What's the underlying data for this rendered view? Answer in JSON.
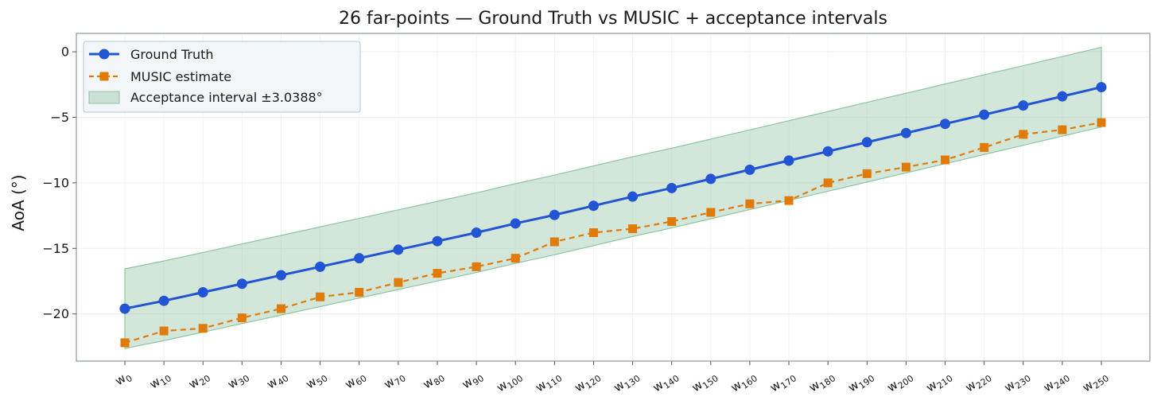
{
  "chart_data": {
    "type": "line",
    "title": "26 far-points — Ground Truth vs MUSIC + acceptance intervals",
    "xlabel": "",
    "ylabel": "AoA (°)",
    "ylim": [
      -23.6,
      1.4
    ],
    "yticks": [
      0,
      -5,
      -10,
      -15,
      -20
    ],
    "ytick_labels": [
      "0",
      "−5",
      "−10",
      "−15",
      "−20"
    ],
    "grid": true,
    "legend_placement": "top-left",
    "categories": [
      {
        "base": "w",
        "sub": "0"
      },
      {
        "base": "w",
        "sub": "10"
      },
      {
        "base": "w",
        "sub": "20"
      },
      {
        "base": "w",
        "sub": "30"
      },
      {
        "base": "w",
        "sub": "40"
      },
      {
        "base": "w",
        "sub": "50"
      },
      {
        "base": "w",
        "sub": "60"
      },
      {
        "base": "w",
        "sub": "70"
      },
      {
        "base": "w",
        "sub": "80"
      },
      {
        "base": "w",
        "sub": "90"
      },
      {
        "base": "w",
        "sub": "100"
      },
      {
        "base": "w",
        "sub": "110"
      },
      {
        "base": "w",
        "sub": "120"
      },
      {
        "base": "w",
        "sub": "130"
      },
      {
        "base": "w",
        "sub": "140"
      },
      {
        "base": "w",
        "sub": "150"
      },
      {
        "base": "w",
        "sub": "160"
      },
      {
        "base": "w",
        "sub": "170"
      },
      {
        "base": "w",
        "sub": "180"
      },
      {
        "base": "w",
        "sub": "190"
      },
      {
        "base": "w",
        "sub": "200"
      },
      {
        "base": "w",
        "sub": "210"
      },
      {
        "base": "w",
        "sub": "220"
      },
      {
        "base": "w",
        "sub": "230"
      },
      {
        "base": "w",
        "sub": "240"
      },
      {
        "base": "w",
        "sub": "250"
      }
    ],
    "series": [
      {
        "name": "Ground Truth",
        "color": "#2255d4",
        "marker": "circle",
        "linestyle": "solid",
        "values": [
          -19.6,
          -19.0,
          -18.35,
          -17.7,
          -17.05,
          -16.4,
          -15.75,
          -15.1,
          -14.45,
          -13.8,
          -13.1,
          -12.45,
          -11.75,
          -11.05,
          -10.4,
          -9.7,
          -9.0,
          -8.3,
          -7.6,
          -6.9,
          -6.2,
          -5.5,
          -4.8,
          -4.1,
          -3.4,
          -2.7
        ]
      },
      {
        "name": "MUSIC estimate",
        "color": "#e07b0a",
        "marker": "square",
        "linestyle": "dashed",
        "values": [
          -22.2,
          -21.3,
          -21.1,
          -20.3,
          -19.6,
          -18.7,
          -18.35,
          -17.6,
          -16.9,
          -16.4,
          -15.75,
          -14.5,
          -13.8,
          -13.5,
          -12.95,
          -12.25,
          -11.6,
          -11.35,
          -10.0,
          -9.3,
          -8.8,
          -8.25,
          -7.3,
          -6.3,
          -5.95,
          -5.4
        ]
      }
    ],
    "band": {
      "name": "Acceptance interval ±3.0388°",
      "color": "#8fc4a3",
      "reference_series": "Ground Truth",
      "half_width": 3.0388
    }
  }
}
